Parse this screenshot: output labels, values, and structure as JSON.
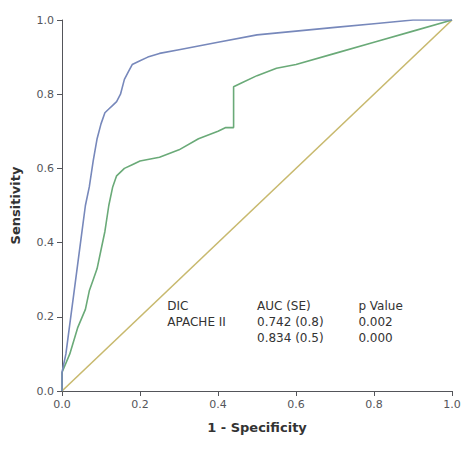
{
  "chart_data": {
    "type": "line",
    "xlabel": "1 - Specificity",
    "ylabel": "Sensitivity",
    "xlim": [
      0.0,
      1.0
    ],
    "ylim": [
      0.0,
      1.0
    ],
    "xticks": [
      {
        "value": 0.0,
        "label": "0.0"
      },
      0.2,
      0.4,
      0.6,
      0.8,
      {
        "value": 1.0,
        "label": "1.0"
      }
    ],
    "yticks": [
      {
        "value": 0.0,
        "label": "0.0"
      },
      0.2,
      0.4,
      0.6,
      0.8,
      {
        "value": 1.0,
        "label": "1.0"
      }
    ],
    "grid": false,
    "series": [
      {
        "color": "#c8b96e",
        "x": [
          0,
          1
        ],
        "values": [
          0,
          1
        ]
      },
      {
        "color": "#6aaa78",
        "x": [
          0.0,
          0.0,
          0.02,
          0.04,
          0.06,
          0.07,
          0.08,
          0.09,
          0.1,
          0.11,
          0.12,
          0.13,
          0.14,
          0.15,
          0.16,
          0.18,
          0.2,
          0.25,
          0.3,
          0.35,
          0.4,
          0.42,
          0.44,
          0.44,
          0.46,
          0.5,
          0.55,
          0.6,
          0.7,
          0.8,
          0.9,
          1.0
        ],
        "values": [
          0.0,
          0.05,
          0.1,
          0.17,
          0.22,
          0.27,
          0.3,
          0.33,
          0.38,
          0.43,
          0.5,
          0.55,
          0.58,
          0.59,
          0.6,
          0.61,
          0.62,
          0.63,
          0.65,
          0.68,
          0.7,
          0.71,
          0.71,
          0.82,
          0.83,
          0.85,
          0.87,
          0.88,
          0.91,
          0.94,
          0.97,
          1.0
        ]
      },
      {
        "color": "#7788bb",
        "x": [
          0.0,
          0.0,
          0.01,
          0.02,
          0.03,
          0.04,
          0.05,
          0.06,
          0.07,
          0.08,
          0.09,
          0.1,
          0.11,
          0.12,
          0.13,
          0.14,
          0.15,
          0.16,
          0.17,
          0.18,
          0.2,
          0.22,
          0.25,
          0.3,
          0.35,
          0.4,
          0.5,
          0.6,
          0.7,
          0.8,
          0.9,
          1.0
        ],
        "values": [
          0.0,
          0.05,
          0.1,
          0.18,
          0.26,
          0.34,
          0.42,
          0.5,
          0.55,
          0.62,
          0.68,
          0.72,
          0.75,
          0.76,
          0.77,
          0.78,
          0.8,
          0.84,
          0.86,
          0.88,
          0.89,
          0.9,
          0.91,
          0.92,
          0.93,
          0.94,
          0.96,
          0.97,
          0.98,
          0.99,
          1.0,
          1.0
        ]
      }
    ],
    "annotations": [
      "DIC\nAPACHE II",
      "AUC (SE)\n0.742 (0.8)\n0.834 (0.5)",
      "p Value\n0.002\n0.000"
    ]
  }
}
